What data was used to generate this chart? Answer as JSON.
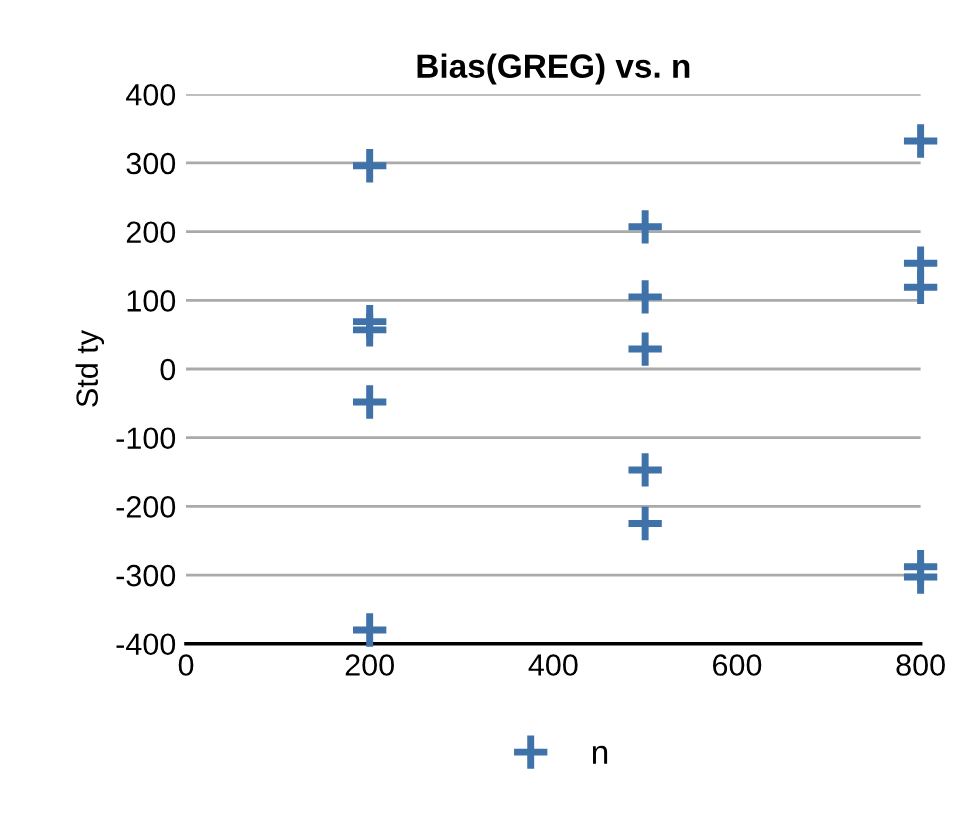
{
  "chart_data": {
    "type": "scatter",
    "title": "Bias(GREG) vs. n",
    "ylabel": "Std ty",
    "series": [
      {
        "name": "n",
        "color": "#3f72a8",
        "x": [
          200,
          200,
          200,
          200,
          200,
          500,
          500,
          500,
          500,
          500,
          800,
          800,
          800,
          800,
          800
        ],
        "values": [
          296,
          57,
          69,
          -48,
          -380,
          207,
          105,
          29,
          -147,
          -225,
          332,
          154,
          119,
          -288,
          -303
        ]
      }
    ],
    "xlim": [
      0,
      800
    ],
    "xticks": [
      0,
      200,
      400,
      600,
      800
    ],
    "ylim": [
      -400,
      400
    ],
    "yticks": [
      -400,
      -300,
      -200,
      -100,
      0,
      100,
      200,
      300,
      400
    ],
    "grid": "y",
    "legend": "bottom",
    "marker": "cross"
  }
}
